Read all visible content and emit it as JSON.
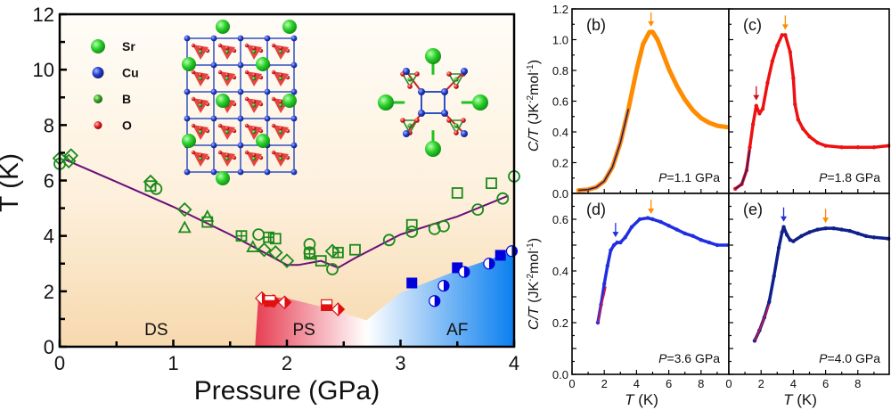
{
  "chart_data": [
    {
      "id": "a",
      "type": "scatter",
      "title": "",
      "xlabel": "Pressure (GPa)",
      "ylabel": "T (K)",
      "xlim": [
        0,
        4
      ],
      "ylim": [
        0,
        12
      ],
      "xticks": [
        "0",
        "1",
        "2",
        "3",
        "4"
      ],
      "yticks": [
        "0",
        "2",
        "4",
        "6",
        "8",
        "10",
        "12"
      ],
      "grid": false,
      "phase_labels": [
        {
          "text": "DS",
          "x": 0.85,
          "y": 0.65
        },
        {
          "text": "PS",
          "x": 2.15,
          "y": 0.65
        },
        {
          "text": "AF",
          "x": 3.5,
          "y": 0.65
        }
      ],
      "legend": {
        "placement": "top-left",
        "entries": [
          {
            "label": "Sr",
            "color": "#22c022"
          },
          {
            "label": "Cu",
            "color": "#2233cc"
          },
          {
            "label": "B",
            "color": "#229922"
          },
          {
            "label": "O",
            "color": "#e02020"
          }
        ]
      },
      "phase_boundary_line": {
        "color": "#6a0f78",
        "x": [
          0.05,
          0.5,
          1.0,
          1.5,
          1.8,
          2.0,
          2.1,
          2.3,
          2.45,
          2.6,
          3.0,
          3.5,
          3.95
        ],
        "y": [
          6.75,
          5.95,
          5.05,
          4.05,
          3.4,
          2.95,
          2.95,
          3.1,
          2.85,
          3.2,
          4.05,
          4.7,
          5.45
        ]
      },
      "series": [
        {
          "name": "green-circle",
          "marker": "circle",
          "color": "#1a8a1a",
          "x": [
            0.0,
            0.85,
            1.75,
            2.2,
            2.2,
            2.4,
            2.9,
            3.1,
            3.3,
            3.38,
            3.68,
            3.9,
            4.0
          ],
          "y": [
            6.6,
            5.7,
            4.05,
            3.7,
            3.4,
            2.8,
            3.85,
            4.15,
            4.25,
            4.35,
            4.95,
            5.35,
            6.15
          ]
        },
        {
          "name": "green-diamond",
          "marker": "diamond",
          "color": "#1a8a1a",
          "x": [
            0.0,
            0.08,
            0.1,
            0.8,
            1.1,
            1.8,
            1.9,
            2.0,
            2.4
          ],
          "y": [
            6.8,
            6.7,
            6.9,
            5.95,
            4.95,
            3.5,
            3.4,
            3.1,
            3.45
          ]
        },
        {
          "name": "green-triangle",
          "marker": "triangle",
          "color": "#1a8a1a",
          "x": [
            1.1,
            1.3,
            1.7
          ],
          "y": [
            4.3,
            4.7,
            3.6
          ]
        },
        {
          "name": "green-square",
          "marker": "square",
          "color": "#1a8a1a",
          "x": [
            0.8,
            1.3,
            1.9,
            2.3,
            2.6,
            3.1,
            3.5,
            3.8
          ],
          "y": [
            5.8,
            4.5,
            3.9,
            3.1,
            3.5,
            4.4,
            5.55,
            5.9
          ]
        },
        {
          "name": "green-crossed-square",
          "marker": "crossed-square",
          "color": "#1a8a1a",
          "x": [
            1.6,
            1.84,
            2.2,
            2.45
          ],
          "y": [
            4.0,
            3.95,
            3.35,
            3.4
          ]
        },
        {
          "name": "red-half-diamond",
          "marker": "half-diamond",
          "color": "#e01010",
          "x": [
            1.78,
            1.88,
            1.98,
            2.45
          ],
          "y": [
            1.75,
            1.65,
            1.6,
            1.35
          ]
        },
        {
          "name": "red-half-square",
          "marker": "half-square",
          "color": "#e01010",
          "x": [
            1.85,
            2.35
          ],
          "y": [
            1.65,
            1.5
          ]
        },
        {
          "name": "blue-square",
          "marker": "filled-square",
          "color": "#0000dd",
          "x": [
            3.1,
            3.5,
            3.88
          ],
          "y": [
            2.3,
            2.85,
            3.3
          ]
        },
        {
          "name": "blue-half-circle",
          "marker": "half-circle",
          "color": "#0000dd",
          "x": [
            3.3,
            3.38,
            3.56,
            3.78,
            3.98
          ],
          "y": [
            1.65,
            2.2,
            2.7,
            3.0,
            3.45
          ]
        }
      ],
      "phase_regions": [
        {
          "name": "DS",
          "colors": [
            "#f7dcb4",
            "#fffaf2"
          ]
        },
        {
          "name": "PS",
          "colors": [
            "#e84050",
            "#ffffff"
          ],
          "boundary_x": [
            1.72,
            1.75,
            2.0,
            2.4,
            2.7
          ],
          "boundary_y": [
            0,
            1.85,
            1.75,
            1.35,
            0.95
          ]
        },
        {
          "name": "AF",
          "colors": [
            "#ffffff",
            "#0b7ff0"
          ],
          "boundary_x": [
            2.7,
            3.0,
            3.5,
            4.0
          ],
          "boundary_y": [
            0.95,
            1.95,
            2.75,
            3.45
          ]
        }
      ]
    },
    {
      "id": "b",
      "panel_label": "(b)",
      "type": "line",
      "annotation_prefix": "P",
      "annotation": "=1.1 GPa",
      "xlabel": "",
      "ylabel": "C/T (JK⁻²mol⁻¹)",
      "xlim": [
        0,
        9.7
      ],
      "ylim": [
        0,
        1.2
      ],
      "yticks": [
        "0.0",
        "0.2",
        "0.4",
        "0.6",
        "0.8",
        "1.0",
        "1.2"
      ],
      "series": [
        {
          "name": "data",
          "color": "#ff8c00",
          "x": [
            0.4,
            1.0,
            1.5,
            2.0,
            2.5,
            3.0,
            3.5,
            4.0,
            4.4,
            4.8,
            5.0,
            5.3,
            5.6,
            6.0,
            6.5,
            7.0,
            7.5,
            8.0,
            8.5,
            9.0,
            9.7
          ],
          "y": [
            0.02,
            0.025,
            0.04,
            0.08,
            0.17,
            0.33,
            0.55,
            0.8,
            0.97,
            1.05,
            1.05,
            1.0,
            0.92,
            0.81,
            0.7,
            0.61,
            0.54,
            0.49,
            0.46,
            0.44,
            0.43
          ]
        },
        {
          "name": "fit",
          "color": "#2a1a7a",
          "x": [
            0.4,
            1.0,
            1.5,
            2.0,
            2.5,
            3.0,
            3.5
          ],
          "y": [
            0.02,
            0.025,
            0.04,
            0.08,
            0.17,
            0.33,
            0.55
          ]
        }
      ],
      "arrows": [
        {
          "x": 4.9,
          "color": "#ff8c00"
        }
      ]
    },
    {
      "id": "c",
      "panel_label": "(c)",
      "type": "line",
      "annotation_prefix": "P",
      "annotation": "=1.8 GPa",
      "xlim": [
        0,
        9.9
      ],
      "ylim": [
        0,
        1.2
      ],
      "series": [
        {
          "name": "data",
          "color": "#ee1111",
          "x": [
            0.4,
            0.8,
            1.1,
            1.3,
            1.5,
            1.7,
            1.9,
            2.1,
            2.4,
            2.7,
            3.0,
            3.3,
            3.5,
            3.8,
            4.0,
            4.1,
            4.3,
            4.6,
            5.0,
            5.5,
            6.0,
            7.0,
            8.0,
            9.0,
            9.9
          ],
          "y": [
            0.03,
            0.06,
            0.15,
            0.3,
            0.45,
            0.57,
            0.52,
            0.55,
            0.72,
            0.86,
            0.96,
            1.03,
            1.03,
            0.92,
            0.75,
            0.58,
            0.48,
            0.42,
            0.37,
            0.33,
            0.31,
            0.3,
            0.3,
            0.3,
            0.31
          ]
        },
        {
          "name": "fit",
          "color": "#2a1a7a",
          "x": [
            0.4,
            0.8,
            1.1,
            1.3
          ],
          "y": [
            0.03,
            0.06,
            0.15,
            0.28
          ]
        }
      ],
      "arrows": [
        {
          "x": 1.7,
          "color": "#cc1122"
        },
        {
          "x": 3.5,
          "color": "#ff8c00"
        }
      ]
    },
    {
      "id": "d",
      "panel_label": "(d)",
      "type": "line",
      "annotation_prefix": "P",
      "annotation": "=3.6 GPa",
      "xlabel": "T (K)",
      "ylabel": "C/T (JK⁻²mol⁻¹)",
      "xlim": [
        0,
        9.7
      ],
      "ylim": [
        0,
        0.7
      ],
      "xticks": [
        "0",
        "2",
        "4",
        "6",
        "8"
      ],
      "yticks": [
        "0.0",
        "0.2",
        "0.4",
        "0.6"
      ],
      "series": [
        {
          "name": "data",
          "color": "#1f2fe0",
          "x": [
            1.6,
            1.8,
            2.0,
            2.2,
            2.4,
            2.6,
            2.8,
            3.0,
            3.3,
            3.7,
            4.2,
            4.7,
            5.0,
            5.5,
            6.0,
            6.5,
            7.0,
            7.5,
            8.0,
            8.5,
            9.0,
            9.7
          ],
          "y": [
            0.2,
            0.27,
            0.35,
            0.42,
            0.48,
            0.5,
            0.51,
            0.51,
            0.53,
            0.57,
            0.6,
            0.605,
            0.6,
            0.59,
            0.575,
            0.56,
            0.545,
            0.535,
            0.52,
            0.51,
            0.5,
            0.5
          ]
        },
        {
          "name": "fit",
          "color": "#dd1144",
          "x": [
            1.6,
            1.8,
            2.0,
            2.1
          ],
          "y": [
            0.2,
            0.26,
            0.31,
            0.34
          ]
        }
      ],
      "arrows": [
        {
          "x": 2.7,
          "color": "#1f2fe0"
        },
        {
          "x": 4.9,
          "color": "#ff8c00"
        }
      ]
    },
    {
      "id": "e",
      "panel_label": "(e)",
      "type": "line",
      "annotation_prefix": "P",
      "annotation": "=4.0 GPa",
      "xlabel": "T (K)",
      "xlim": [
        0,
        9.9
      ],
      "ylim": [
        0,
        0.7
      ],
      "xticks": [
        "0",
        "2",
        "4",
        "6",
        "8"
      ],
      "series": [
        {
          "name": "data",
          "color": "#10208a",
          "x": [
            1.6,
            1.9,
            2.2,
            2.5,
            2.8,
            3.1,
            3.3,
            3.4,
            3.6,
            3.8,
            4.0,
            4.5,
            5.0,
            5.5,
            6.0,
            6.5,
            7.0,
            7.5,
            8.0,
            8.5,
            9.0,
            9.9
          ],
          "y": [
            0.13,
            0.17,
            0.22,
            0.28,
            0.38,
            0.49,
            0.55,
            0.57,
            0.54,
            0.52,
            0.515,
            0.535,
            0.55,
            0.56,
            0.565,
            0.565,
            0.56,
            0.555,
            0.545,
            0.535,
            0.53,
            0.525
          ]
        },
        {
          "name": "fit",
          "color": "#dd1144",
          "x": [
            1.6,
            1.9,
            2.2,
            2.5
          ],
          "y": [
            0.13,
            0.17,
            0.22,
            0.27
          ]
        }
      ],
      "arrows": [
        {
          "x": 3.4,
          "color": "#1f2fe0"
        },
        {
          "x": 6.0,
          "color": "#ff8c00"
        }
      ]
    }
  ]
}
